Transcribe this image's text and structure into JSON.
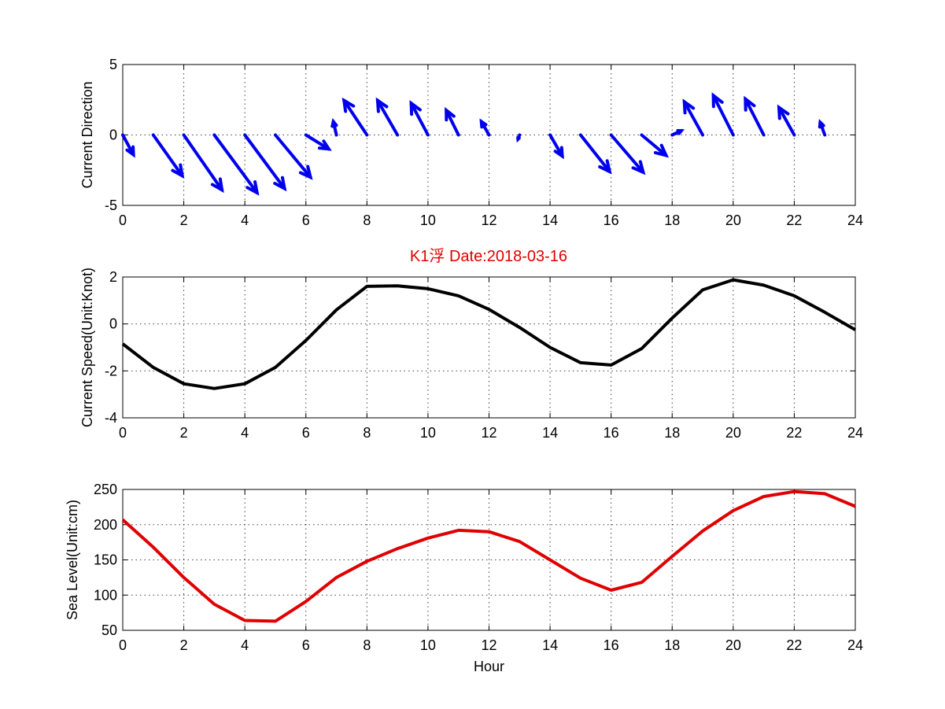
{
  "figure": {
    "title": "K1浮    Date:2018-03-16",
    "title_color": "#e00000"
  },
  "chart_data": [
    {
      "type": "quiver",
      "ylabel": "Current Direction",
      "xlim": [
        0,
        24
      ],
      "ylim": [
        -5,
        5
      ],
      "xticks": [
        0,
        2,
        4,
        6,
        8,
        10,
        12,
        14,
        16,
        18,
        20,
        22,
        24
      ],
      "yticks": [
        -5,
        0,
        5
      ],
      "grid": true,
      "color": "#0000ee",
      "x": [
        0,
        1,
        2,
        3,
        4,
        5,
        6,
        7,
        8,
        9,
        10,
        11,
        12,
        13,
        14,
        15,
        16,
        17,
        18,
        19,
        20,
        21,
        22,
        23
      ],
      "u": [
        0.35,
        0.95,
        1.25,
        1.4,
        1.3,
        1.15,
        0.75,
        -0.1,
        -0.75,
        -0.65,
        -0.55,
        -0.4,
        -0.25,
        -0.05,
        0.4,
        0.95,
        1.05,
        0.8,
        0.3,
        -0.6,
        -0.65,
        -0.6,
        -0.5,
        -0.15
      ],
      "v": [
        -1.4,
        -2.9,
        -3.9,
        -4.1,
        -3.8,
        -3.0,
        -1.0,
        0.95,
        2.45,
        2.45,
        2.25,
        1.75,
        0.95,
        -0.3,
        -1.5,
        -2.6,
        -2.65,
        -1.45,
        0.3,
        2.35,
        2.8,
        2.55,
        1.95,
        0.9
      ]
    },
    {
      "type": "line",
      "ylabel": "Current Speed(Unit:Knot)",
      "xlim": [
        0,
        24
      ],
      "ylim": [
        -4,
        2
      ],
      "xticks": [
        0,
        2,
        4,
        6,
        8,
        10,
        12,
        14,
        16,
        18,
        20,
        22,
        24
      ],
      "yticks": [
        -4,
        -2,
        0,
        2
      ],
      "grid": true,
      "color": "#000000",
      "x": [
        0,
        1,
        2,
        3,
        4,
        5,
        6,
        7,
        8,
        9,
        10,
        11,
        12,
        13,
        14,
        15,
        16,
        17,
        18,
        19,
        20,
        21,
        22,
        23,
        24
      ],
      "y": [
        -0.85,
        -1.85,
        -2.55,
        -2.75,
        -2.55,
        -1.85,
        -0.7,
        0.6,
        1.6,
        1.62,
        1.5,
        1.2,
        0.62,
        -0.15,
        -1.0,
        -1.65,
        -1.75,
        -1.05,
        0.25,
        1.45,
        1.88,
        1.65,
        1.2,
        0.5,
        -0.25
      ]
    },
    {
      "type": "line",
      "xlabel": "Hour",
      "ylabel": "Sea Level(Unit:cm)",
      "xlim": [
        0,
        24
      ],
      "ylim": [
        50,
        250
      ],
      "xticks": [
        0,
        2,
        4,
        6,
        8,
        10,
        12,
        14,
        16,
        18,
        20,
        22,
        24
      ],
      "yticks": [
        50,
        100,
        150,
        200,
        250
      ],
      "grid": true,
      "color": "#e00000",
      "x": [
        0,
        1,
        2,
        3,
        4,
        5,
        6,
        7,
        8,
        9,
        10,
        11,
        12,
        13,
        14,
        15,
        16,
        17,
        18,
        19,
        20,
        21,
        22,
        23,
        24
      ],
      "y": [
        207,
        168,
        125,
        87,
        64,
        63,
        91,
        125,
        148,
        166,
        181,
        192,
        190,
        176,
        150,
        124,
        107,
        118,
        155,
        191,
        220,
        240,
        247,
        244,
        226
      ]
    }
  ]
}
